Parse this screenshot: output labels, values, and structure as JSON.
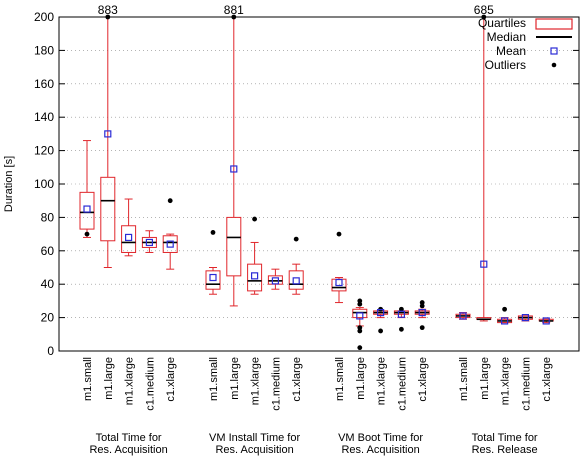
{
  "chart_data": {
    "type": "boxplot",
    "ylabel": "Duration [s]",
    "ylim": [
      0,
      200
    ],
    "yticks": [
      0,
      20,
      40,
      60,
      80,
      100,
      120,
      140,
      160,
      180,
      200
    ],
    "grid": true,
    "legend_position": "top-right",
    "legend": {
      "quartiles": "Quartiles",
      "median": "Median",
      "mean": "Mean",
      "outliers": "Outliers"
    },
    "colors": {
      "box": "#e0262b",
      "median": "#000000",
      "mean": "#2b2bd6",
      "outlier": "#000000",
      "grid": "#888888"
    },
    "groups": [
      {
        "label_line1": "Total Time for",
        "label_line2": "Res. Acquisition",
        "items": [
          {
            "category": "m1.small",
            "whisker_low": 68,
            "q1": 73,
            "median": 83,
            "q3": 95,
            "whisker_high": 126,
            "mean": 85,
            "outliers": [
              70
            ]
          },
          {
            "category": "m1.large",
            "whisker_low": 50,
            "q1": 66,
            "median": 90,
            "q3": 104,
            "whisker_high": 200,
            "mean": 130,
            "outliers": [
              200
            ],
            "clipped_max": "883"
          },
          {
            "category": "m1.xlarge",
            "whisker_low": 57,
            "q1": 59,
            "median": 65,
            "q3": 75,
            "whisker_high": 91,
            "mean": 68,
            "outliers": []
          },
          {
            "category": "c1.medium",
            "whisker_low": 59,
            "q1": 62,
            "median": 65,
            "q3": 68,
            "whisker_high": 72,
            "mean": 65,
            "outliers": []
          },
          {
            "category": "c1.xlarge",
            "whisker_low": 49,
            "q1": 59,
            "median": 65,
            "q3": 69,
            "whisker_high": 70,
            "mean": 64,
            "outliers": [
              90
            ]
          }
        ]
      },
      {
        "label_line1": "VM Install Time for",
        "label_line2": "Res. Acquisition",
        "items": [
          {
            "category": "m1.small",
            "whisker_low": 34,
            "q1": 37,
            "median": 40,
            "q3": 48,
            "whisker_high": 50,
            "mean": 44,
            "outliers": [
              71
            ]
          },
          {
            "category": "m1.large",
            "whisker_low": 27,
            "q1": 45,
            "median": 68,
            "q3": 80,
            "whisker_high": 200,
            "mean": 109,
            "outliers": [
              200
            ],
            "clipped_max": "881"
          },
          {
            "category": "m1.xlarge",
            "whisker_low": 34,
            "q1": 36,
            "median": 42,
            "q3": 52,
            "whisker_high": 65,
            "mean": 45,
            "outliers": [
              79
            ]
          },
          {
            "category": "c1.medium",
            "whisker_low": 37,
            "q1": 40,
            "median": 42,
            "q3": 45,
            "whisker_high": 49,
            "mean": 42,
            "outliers": []
          },
          {
            "category": "c1.xlarge",
            "whisker_low": 34,
            "q1": 37,
            "median": 40,
            "q3": 48,
            "whisker_high": 52,
            "mean": 42,
            "outliers": [
              67
            ]
          }
        ]
      },
      {
        "label_line1": "VM Boot Time for",
        "label_line2": "Res. Acquisition",
        "items": [
          {
            "category": "m1.small",
            "whisker_low": 29,
            "q1": 36,
            "median": 38,
            "q3": 43,
            "whisker_high": 44,
            "mean": 41,
            "outliers": [
              70
            ]
          },
          {
            "category": "m1.large",
            "whisker_low": 15,
            "q1": 20,
            "median": 23,
            "q3": 25,
            "whisker_high": 26,
            "mean": 21,
            "outliers": [
              2,
              12,
              14,
              28,
              30
            ]
          },
          {
            "category": "m1.xlarge",
            "whisker_low": 20,
            "q1": 22,
            "median": 23,
            "q3": 24,
            "whisker_high": 24,
            "mean": 23,
            "outliers": [
              12,
              25
            ]
          },
          {
            "category": "c1.medium",
            "whisker_low": 20,
            "q1": 22,
            "median": 23,
            "q3": 24,
            "whisker_high": 24,
            "mean": 22,
            "outliers": [
              13,
              25
            ]
          },
          {
            "category": "c1.xlarge",
            "whisker_low": 20,
            "q1": 22,
            "median": 23,
            "q3": 24,
            "whisker_high": 25,
            "mean": 23,
            "outliers": [
              14,
              27,
              29
            ]
          }
        ]
      },
      {
        "label_line1": "Total Time for",
        "label_line2": "Res. Release",
        "items": [
          {
            "category": "m1.small",
            "whisker_low": 19,
            "q1": 20,
            "median": 21,
            "q3": 22,
            "whisker_high": 23,
            "mean": 21,
            "outliers": []
          },
          {
            "category": "m1.large",
            "whisker_low": 18,
            "q1": 19,
            "median": 19,
            "q3": 20,
            "whisker_high": 200,
            "mean": 52,
            "outliers": [
              200
            ],
            "clipped_max": "685"
          },
          {
            "category": "m1.xlarge",
            "whisker_low": 17,
            "q1": 17,
            "median": 18,
            "q3": 19,
            "whisker_high": 20,
            "mean": 18,
            "outliers": [
              25
            ]
          },
          {
            "category": "c1.medium",
            "whisker_low": 18,
            "q1": 19,
            "median": 20,
            "q3": 21,
            "whisker_high": 21,
            "mean": 20,
            "outliers": []
          },
          {
            "category": "c1.xlarge",
            "whisker_low": 17,
            "q1": 18,
            "median": 18,
            "q3": 19,
            "whisker_high": 19,
            "mean": 18,
            "outliers": []
          }
        ]
      }
    ]
  }
}
